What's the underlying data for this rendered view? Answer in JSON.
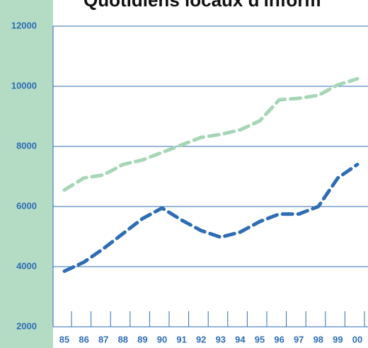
{
  "chart_data": {
    "type": "line",
    "title": "Quotidiens locaux d'inform",
    "categories": [
      "85",
      "86",
      "87",
      "88",
      "89",
      "90",
      "91",
      "92",
      "93",
      "94",
      "95",
      "96",
      "97",
      "98",
      "99",
      "00"
    ],
    "series": [
      {
        "color": "#a6d6b6",
        "values": [
          6550,
          6950,
          7050,
          7400,
          7550,
          7800,
          8050,
          8300,
          8400,
          8550,
          8850,
          9550,
          9600,
          9700,
          10050,
          10250
        ]
      },
      {
        "color": "#2e6db4",
        "values": [
          3850,
          4150,
          4600,
          5100,
          5600,
          5950,
          5550,
          5200,
          4980,
          5150,
          5500,
          5750,
          5750,
          6000,
          6950,
          7400
        ]
      }
    ],
    "ylim": [
      2000,
      12000
    ],
    "yticks": [
      2000,
      4000,
      6000,
      8000,
      10000,
      12000
    ],
    "grid": true
  }
}
